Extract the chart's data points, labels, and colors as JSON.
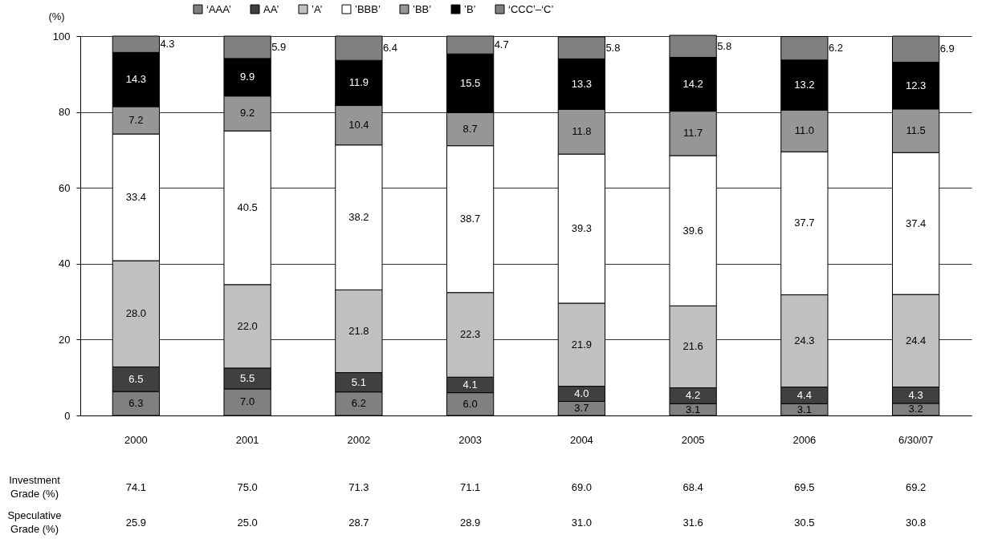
{
  "chart_data": {
    "type": "bar",
    "stacked": true,
    "ylabel": "(%)",
    "categories": [
      "2000",
      "2001",
      "2002",
      "2003",
      "2004",
      "2005",
      "2006",
      "6/30/07"
    ],
    "series": [
      {
        "name": "‘AAA’",
        "color": "#808080",
        "values": [
          6.3,
          7.0,
          6.2,
          6.0,
          3.7,
          3.1,
          3.1,
          3.2
        ],
        "value_labels": [
          "6.3",
          "7.0",
          "6.2",
          "6.0",
          "3.7",
          "3.1",
          "3.1",
          "3.2"
        ]
      },
      {
        "name": "AA’",
        "color": "#404040",
        "values": [
          6.5,
          5.5,
          5.1,
          4.1,
          4.0,
          4.2,
          4.4,
          4.3
        ],
        "value_labels": [
          "6.5",
          "5.5",
          "5.1",
          "4.1",
          "4.0",
          "4.2",
          "4.4",
          "4.3"
        ]
      },
      {
        "name": "’A’",
        "color": "#c0c0c0",
        "values": [
          28.0,
          22.0,
          21.8,
          22.3,
          21.9,
          21.6,
          24.3,
          24.4
        ],
        "value_labels": [
          "28.0",
          "22.0",
          "21.8",
          "22.3",
          "21.9",
          "21.6",
          "24.3",
          "24.4"
        ]
      },
      {
        "name": "’BBB’",
        "color": "#ffffff",
        "values": [
          33.4,
          40.5,
          38.2,
          38.7,
          39.3,
          39.6,
          37.7,
          37.4
        ],
        "value_labels": [
          "33.4",
          "40.5",
          "38.2",
          "38.7",
          "39.3",
          "39.6",
          "37.7",
          "37.4"
        ]
      },
      {
        "name": "’BB’",
        "color": "#969696",
        "values": [
          7.2,
          9.2,
          10.4,
          8.7,
          11.8,
          11.7,
          11.0,
          11.5
        ],
        "value_labels": [
          "7.2",
          "9.2",
          "10.4",
          "8.7",
          "11.8",
          "11.7",
          "11.0",
          "11.5"
        ]
      },
      {
        "name": "’B’",
        "color": "#000000",
        "values": [
          14.3,
          9.9,
          11.9,
          15.5,
          13.3,
          14.2,
          13.2,
          12.3
        ],
        "value_labels": [
          "14.3",
          "9.9",
          "11.9",
          "15.5",
          "13.3",
          "14.2",
          "13.2",
          "12.3"
        ]
      },
      {
        "name": "‘CCC’–‘C’",
        "color": "#808080",
        "values": [
          4.3,
          5.9,
          6.4,
          4.7,
          5.8,
          5.8,
          6.2,
          6.9
        ],
        "value_labels": [
          "4.3",
          "5.9",
          "6.4",
          "4.7",
          "5.8",
          "5.8",
          "6.2",
          "6.9"
        ]
      }
    ],
    "ylim": [
      0,
      100
    ],
    "yticks": [
      0,
      20,
      40,
      60,
      80,
      100
    ],
    "grid": "y",
    "legend": "top",
    "annotations": [
      "Investment Grade (%)",
      "74.1",
      "75.0",
      "71.3",
      "71.1",
      "69.0",
      "68.4",
      "69.5",
      "69.2",
      "Speculative Grade (%)",
      "25.9",
      "25.0",
      "28.7",
      "28.9",
      "31.0",
      "31.6",
      "30.5",
      "30.8"
    ]
  }
}
